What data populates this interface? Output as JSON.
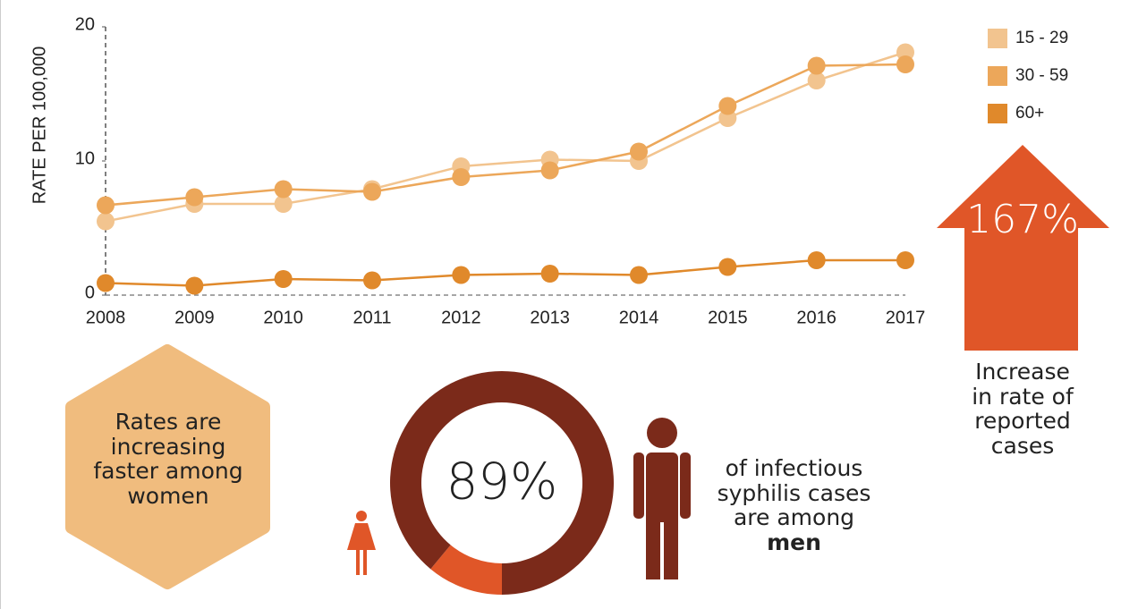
{
  "chart_data": [
    {
      "type": "line",
      "y_label": "RATE PER 100,000",
      "x": [
        2008,
        2009,
        2010,
        2011,
        2012,
        2013,
        2014,
        2015,
        2016,
        2017
      ],
      "xlim": [
        2008,
        2017
      ],
      "ylim": [
        0,
        20
      ],
      "yticks": [
        0,
        10,
        20
      ],
      "legend": "top-right",
      "series": [
        {
          "name": "15 - 29",
          "color": "#f2c48f",
          "values": [
            5.5,
            6.8,
            6.8,
            7.9,
            9.6,
            10.1,
            10.0,
            13.2,
            16.0,
            18.1
          ]
        },
        {
          "name": "30 - 59",
          "color": "#eca75a",
          "values": [
            6.7,
            7.3,
            7.9,
            7.7,
            8.8,
            9.3,
            10.7,
            14.1,
            17.1,
            17.2
          ]
        },
        {
          "name": "60+",
          "color": "#e0892b",
          "values": [
            0.9,
            0.7,
            1.2,
            1.1,
            1.5,
            1.6,
            1.5,
            2.1,
            2.6,
            2.6
          ]
        }
      ]
    },
    {
      "type": "pie",
      "categories": [
        "men",
        "women"
      ],
      "values": [
        89,
        11
      ],
      "value_labels": [
        "89%",
        null
      ],
      "colors": [
        "#7b2a1a",
        "#e05628"
      ]
    }
  ],
  "increase": {
    "value": "167%",
    "caption": "Increase in rate of reported cases"
  },
  "note": "Rates are increasing faster among women",
  "callout": {
    "text": "of infectious syphilis cases are among",
    "emphasis": "men"
  }
}
